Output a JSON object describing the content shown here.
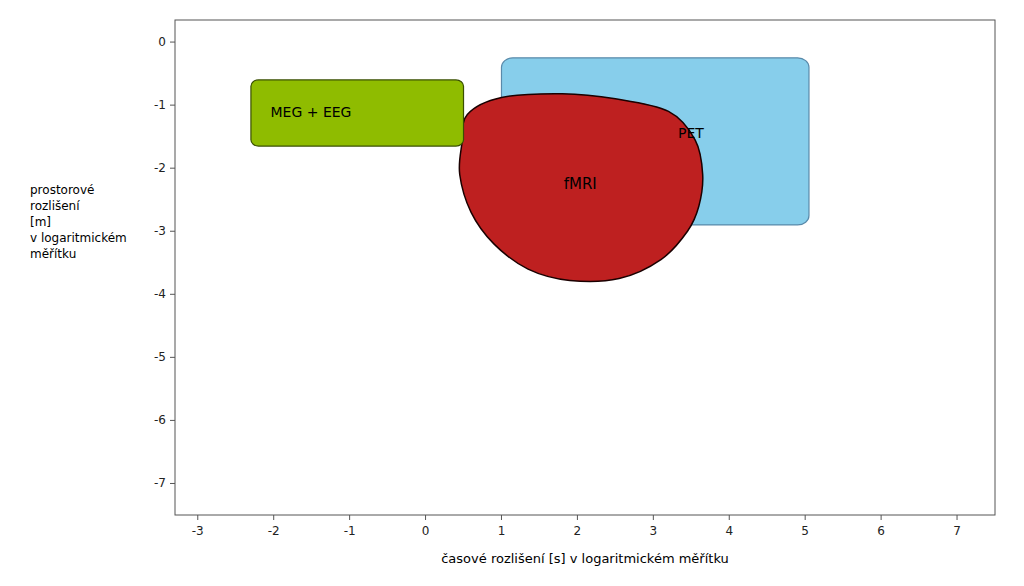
{
  "chart_data": {
    "type": "shapes",
    "xlabel": "časové rozlišení [s] v logaritmickém měřítku",
    "ylabel": [
      "prostorové",
      "rozlišení",
      "[m]",
      "v logaritmickém",
      "měřítku"
    ],
    "xlim": [
      -3.3,
      7.5
    ],
    "ylim": [
      -7.5,
      0.35
    ],
    "xticks": [
      -3,
      -2,
      -1,
      0,
      1,
      2,
      3,
      4,
      5,
      6,
      7
    ],
    "yticks": [
      0,
      -1,
      -2,
      -3,
      -4,
      -5,
      -6,
      -7
    ],
    "grid": false,
    "shapes": [
      {
        "name": "PET",
        "type": "rounded_rect",
        "color": "#87ceeb",
        "edge_color": "#5a8aaa",
        "x": 1.15,
        "y": -2.75,
        "width": 3.75,
        "height": 2.35,
        "pad": 0.15
      },
      {
        "name": "fMRI",
        "type": "blob",
        "color": "#be2020",
        "edge_color": "#1a0000",
        "x": [
          0.55,
          1.0,
          1.8,
          2.5,
          3.2,
          3.55,
          3.65,
          3.6,
          3.45,
          3.1,
          2.55,
          1.9,
          1.35,
          0.9,
          0.6,
          0.45,
          0.48
        ],
        "y": [
          -1.15,
          -0.88,
          -0.82,
          -0.9,
          -1.1,
          -1.55,
          -2.1,
          -2.6,
          -3.0,
          -3.45,
          -3.75,
          -3.78,
          -3.6,
          -3.2,
          -2.7,
          -2.1,
          -1.6
        ]
      },
      {
        "name": "MEG + EEG",
        "type": "rounded_rect",
        "color": "#8fbc00",
        "edge_color": "#3a5000",
        "x": -2.2,
        "y": -1.55,
        "width": 2.6,
        "height": 0.85,
        "pad": 0.1
      }
    ]
  }
}
